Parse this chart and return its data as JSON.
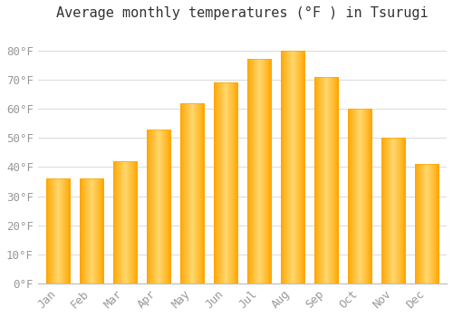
{
  "title": "Average monthly temperatures (°F ) in Tsurugi",
  "months": [
    "Jan",
    "Feb",
    "Mar",
    "Apr",
    "May",
    "Jun",
    "Jul",
    "Aug",
    "Sep",
    "Oct",
    "Nov",
    "Dec"
  ],
  "values": [
    36,
    36,
    42,
    53,
    62,
    69,
    77,
    80,
    71,
    60,
    50,
    41
  ],
  "bar_color_main": "#FFA500",
  "bar_color_light": "#FFD580",
  "background_color": "#FFFFFF",
  "grid_color": "#DDDDDD",
  "ylim": [
    0,
    88
  ],
  "yticks": [
    0,
    10,
    20,
    30,
    40,
    50,
    60,
    70,
    80
  ],
  "ylabel_suffix": "°F",
  "title_fontsize": 11,
  "tick_fontsize": 9,
  "tick_color": "#999999",
  "font_family": "monospace"
}
